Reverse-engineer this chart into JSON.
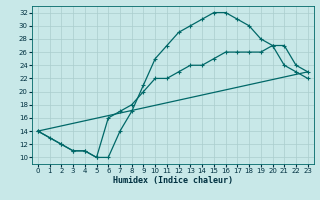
{
  "xlabel": "Humidex (Indice chaleur)",
  "xlim": [
    -0.5,
    23.5
  ],
  "ylim": [
    9,
    33
  ],
  "xticks": [
    0,
    1,
    2,
    3,
    4,
    5,
    6,
    7,
    8,
    9,
    10,
    11,
    12,
    13,
    14,
    15,
    16,
    17,
    18,
    19,
    20,
    21,
    22,
    23
  ],
  "yticks": [
    10,
    12,
    14,
    16,
    18,
    20,
    22,
    24,
    26,
    28,
    30,
    32
  ],
  "background_color": "#c8e8e8",
  "grid_color": "#aacece",
  "line_color": "#006868",
  "line1_x": [
    0,
    1,
    2,
    3,
    4,
    5,
    6,
    7,
    8,
    9,
    10,
    11,
    12,
    13,
    14,
    15,
    16,
    17,
    18,
    19,
    20,
    21,
    22,
    23
  ],
  "line1_y": [
    14,
    13,
    12,
    11,
    11,
    10,
    10,
    14,
    17,
    21,
    25,
    27,
    29,
    30,
    31,
    32,
    32,
    31,
    30,
    28,
    27,
    24,
    23,
    22
  ],
  "line2_x": [
    0,
    2,
    3,
    4,
    5,
    6,
    7,
    8,
    9,
    10,
    11,
    12,
    13,
    14,
    15,
    16,
    17,
    18,
    19,
    20,
    21,
    22,
    23
  ],
  "line2_y": [
    14,
    12,
    11,
    11,
    10,
    16,
    17,
    18,
    20,
    22,
    22,
    23,
    24,
    24,
    25,
    26,
    26,
    26,
    26,
    27,
    27,
    24,
    23
  ],
  "line3_x": [
    0,
    23
  ],
  "line3_y": [
    14,
    23
  ]
}
